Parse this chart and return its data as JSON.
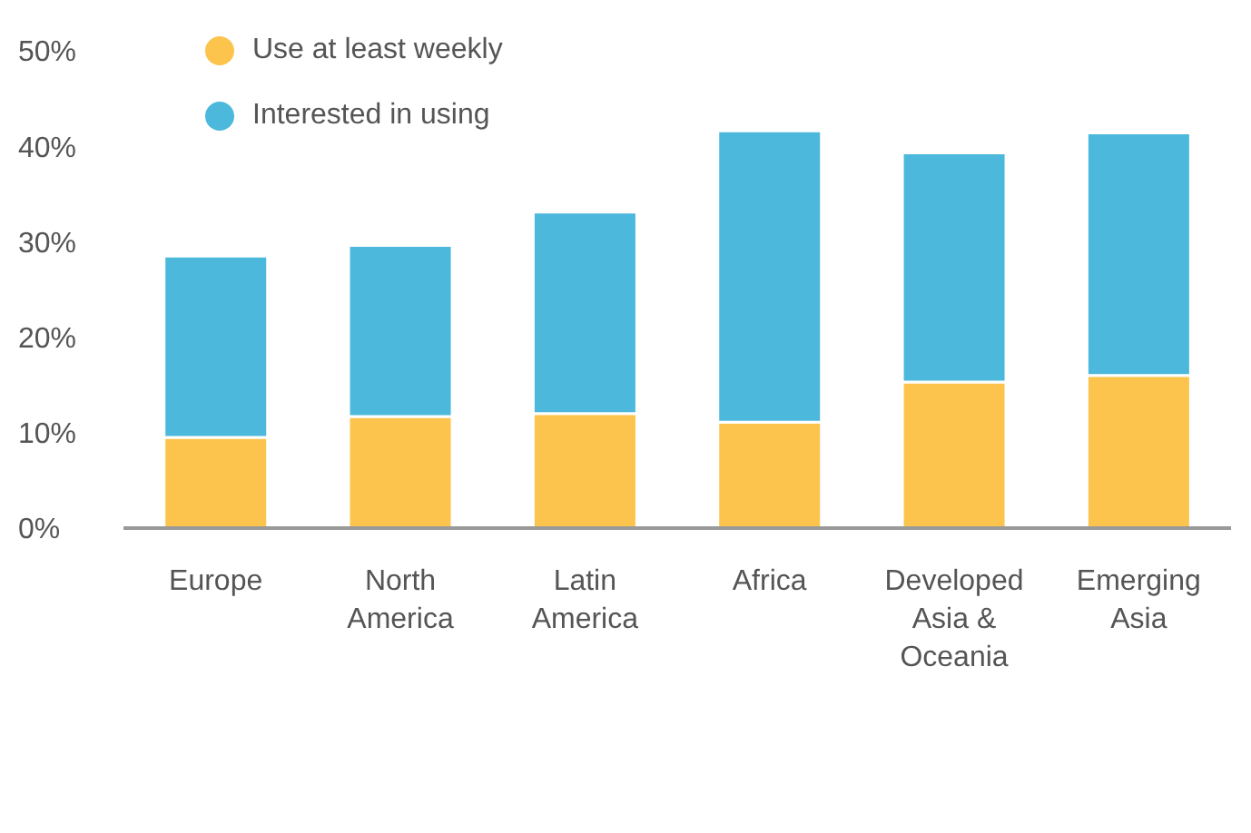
{
  "chart_data": {
    "type": "bar",
    "stacked": true,
    "categories": [
      "Europe",
      "North America",
      "Latin America",
      "Africa",
      "Developed Asia & Oceania",
      "Emerging Asia"
    ],
    "series": [
      {
        "name": "Use at least weekly",
        "color": "#fcc44c",
        "values": [
          9.5,
          11.7,
          12,
          11.1,
          15.3,
          16
        ]
      },
      {
        "name": "Interested in using",
        "color": "#4cb8dc",
        "values": [
          19,
          17.9,
          21.1,
          30.5,
          24,
          25.4
        ]
      }
    ],
    "ylim": [
      0,
      50
    ],
    "yticks": [
      {
        "value": 0,
        "label": "0%"
      },
      {
        "value": 10,
        "label": "10%"
      },
      {
        "value": 20,
        "label": "20%"
      },
      {
        "value": 30,
        "label": "30%"
      },
      {
        "value": 40,
        "label": "40%"
      },
      {
        "value": 50,
        "label": "50%"
      }
    ],
    "grid": false,
    "legend": "top left"
  }
}
